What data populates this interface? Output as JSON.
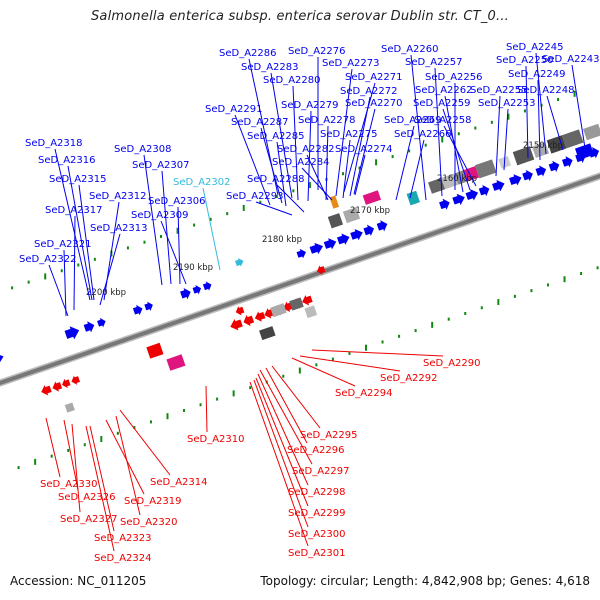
{
  "title": "Salmonella enterica subsp. enterica serovar Dublin str. CT_0...",
  "footer": {
    "accession": "Accession: NC_011205",
    "topology": "Topology: circular; Length: 4,842,908 bp; Genes: 4,618"
  },
  "colors": {
    "forward": "#0000ee",
    "reverse": "#ee0000",
    "highlight": "#33bbdd",
    "tick": "#118811",
    "backbone": "#777777",
    "magenta": "#e0147e",
    "teal": "#1aa8b0",
    "orange": "#e88a1a"
  },
  "kbp_labels": [
    "2150 kbp",
    "2160 kbp",
    "2170 kbp",
    "2180 kbp",
    "2190 kbp",
    "2200 kbp"
  ],
  "labels_top": [
    "SeD_A2286",
    "SeD_A2276",
    "SeD_A2260",
    "SeD_A2245",
    "SeD_A2283",
    "SeD_A2273",
    "SeD_A2257",
    "SeD_A2250",
    "SeD_A2243",
    "SeD_A2280",
    "SeD_A2271",
    "SeD_A2256",
    "SeD_A2249",
    "SeD_A2272",
    "SeD_A2262",
    "SeD_A2255",
    "SeD_A2248",
    "SeD_A2291",
    "SeD_A2279",
    "SeD_A2270",
    "SeD_A2259",
    "SeD_A2253",
    "SeD_A2287",
    "SeD_A2278",
    "SeD_A2269",
    "SeD_A2258",
    "SeD_A2285",
    "SeD_A2275",
    "SeD_A2266",
    "SeD_A2318",
    "SeD_A2308",
    "SeD_A2282",
    "SeD_A2274",
    "SeD_A2316",
    "SeD_A2307",
    "SeD_A2284",
    "SeD_A2315",
    "SeD_A2302",
    "SeD_A2288",
    "SeD_A2312",
    "SeD_A2306",
    "SeD_A2293",
    "SeD_A2317",
    "SeD_A2309",
    "SeD_A2313",
    "SeD_A2321",
    "SeD_A2322"
  ],
  "labels_bottom": [
    "SeD_A2290",
    "SeD_A2292",
    "SeD_A2294",
    "SeD_A2310",
    "SeD_A2295",
    "SeD_A2296",
    "SeD_A2297",
    "SeD_A2314",
    "SeD_A2330",
    "SeD_A2298",
    "SeD_A2326",
    "SeD_A2319",
    "SeD_A2299",
    "SeD_A2327",
    "SeD_A2320",
    "SeD_A2300",
    "SeD_A2323",
    "SeD_A2301",
    "SeD_A2324"
  ]
}
